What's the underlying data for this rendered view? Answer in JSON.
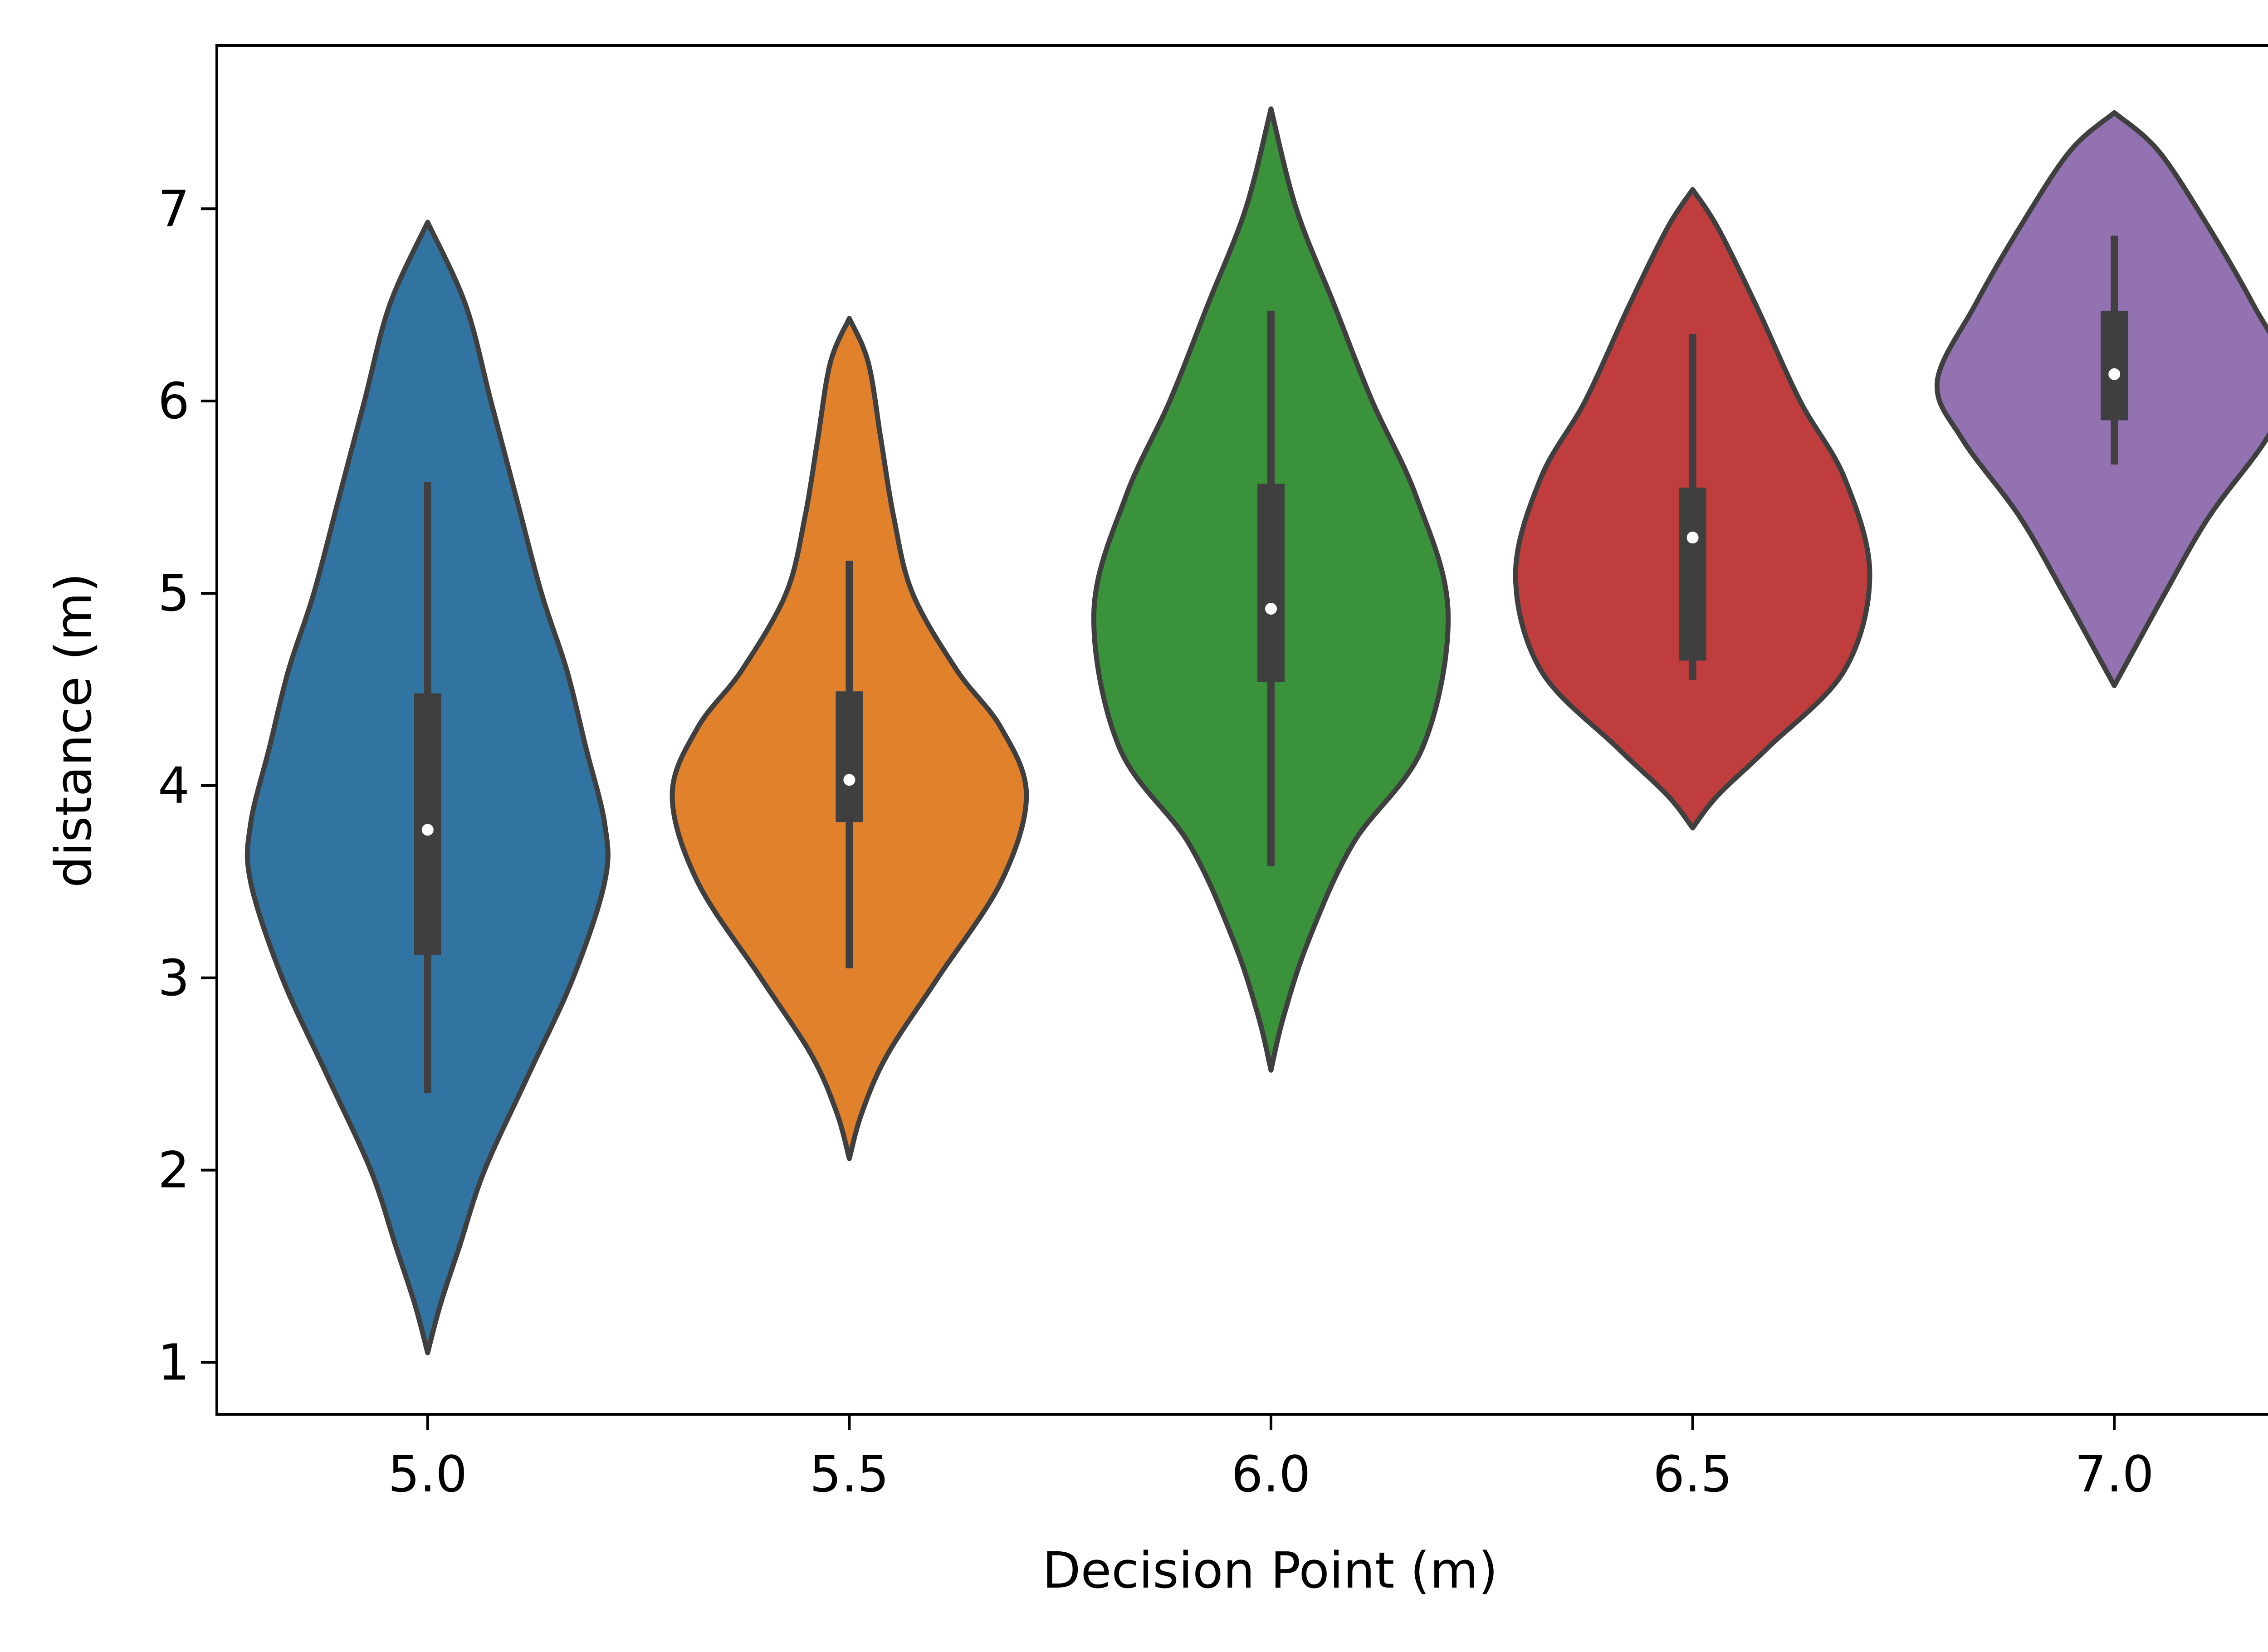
{
  "chart_data": {
    "type": "violin",
    "xlabel": "Decision Point (m)",
    "ylabel": "distance (m)",
    "ylim": [
      0.73,
      7.85
    ],
    "yticks": [
      1,
      2,
      3,
      4,
      5,
      6,
      7
    ],
    "categories": [
      "5.0",
      "5.5",
      "6.0",
      "6.5",
      "7.0"
    ],
    "grid": false,
    "violins": [
      {
        "category": "5.0",
        "color": "#3274a1",
        "min": 1.05,
        "max": 6.93,
        "whisker_low": 2.4,
        "q1": 3.12,
        "median": 3.77,
        "q3": 4.48,
        "whisker_high": 5.58,
        "profile": [
          [
            1.05,
            0.0
          ],
          [
            1.3,
            0.02
          ],
          [
            1.6,
            0.05
          ],
          [
            2.0,
            0.09
          ],
          [
            2.5,
            0.16
          ],
          [
            3.0,
            0.23
          ],
          [
            3.5,
            0.28
          ],
          [
            3.8,
            0.28
          ],
          [
            4.2,
            0.25
          ],
          [
            4.6,
            0.22
          ],
          [
            5.0,
            0.18
          ],
          [
            5.5,
            0.14
          ],
          [
            6.0,
            0.1
          ],
          [
            6.5,
            0.06
          ],
          [
            6.93,
            0.0
          ]
        ]
      },
      {
        "category": "5.5",
        "color": "#e1812c",
        "min": 2.06,
        "max": 6.43,
        "whisker_low": 3.05,
        "q1": 3.81,
        "median": 4.03,
        "q3": 4.49,
        "whisker_high": 5.17,
        "profile": [
          [
            2.06,
            0.0
          ],
          [
            2.3,
            0.02
          ],
          [
            2.6,
            0.06
          ],
          [
            3.0,
            0.14
          ],
          [
            3.5,
            0.24
          ],
          [
            3.95,
            0.28
          ],
          [
            4.3,
            0.24
          ],
          [
            4.6,
            0.17
          ],
          [
            5.0,
            0.1
          ],
          [
            5.4,
            0.07
          ],
          [
            5.8,
            0.05
          ],
          [
            6.2,
            0.03
          ],
          [
            6.43,
            0.0
          ]
        ]
      },
      {
        "category": "6.0",
        "color": "#3a923a",
        "min": 2.52,
        "max": 7.52,
        "whisker_low": 3.58,
        "q1": 4.54,
        "median": 4.92,
        "q3": 5.57,
        "whisker_high": 6.47,
        "profile": [
          [
            2.52,
            0.0
          ],
          [
            2.8,
            0.02
          ],
          [
            3.2,
            0.06
          ],
          [
            3.7,
            0.13
          ],
          [
            4.2,
            0.24
          ],
          [
            4.9,
            0.28
          ],
          [
            5.5,
            0.23
          ],
          [
            6.0,
            0.16
          ],
          [
            6.5,
            0.1
          ],
          [
            7.0,
            0.04
          ],
          [
            7.52,
            0.0
          ]
        ]
      },
      {
        "category": "6.5",
        "color": "#c03d3e",
        "min": 3.78,
        "max": 7.1,
        "whisker_low": 4.55,
        "q1": 4.65,
        "median": 5.29,
        "q3": 5.55,
        "whisker_high": 6.35,
        "profile": [
          [
            3.78,
            0.0
          ],
          [
            3.95,
            0.04
          ],
          [
            4.2,
            0.12
          ],
          [
            4.6,
            0.24
          ],
          [
            5.1,
            0.28
          ],
          [
            5.6,
            0.24
          ],
          [
            6.0,
            0.17
          ],
          [
            6.5,
            0.1
          ],
          [
            6.9,
            0.04
          ],
          [
            7.1,
            0.0
          ]
        ]
      },
      {
        "category": "7.0",
        "color": "#9372b2",
        "min": 4.52,
        "max": 7.5,
        "whisker_low": 5.67,
        "q1": 5.9,
        "median": 6.14,
        "q3": 6.47,
        "whisker_high": 6.86,
        "profile": [
          [
            4.52,
            0.0
          ],
          [
            4.7,
            0.03
          ],
          [
            5.0,
            0.08
          ],
          [
            5.4,
            0.15
          ],
          [
            5.8,
            0.24
          ],
          [
            6.1,
            0.28
          ],
          [
            6.5,
            0.22
          ],
          [
            6.9,
            0.15
          ],
          [
            7.3,
            0.07
          ],
          [
            7.5,
            0.0
          ]
        ]
      }
    ]
  }
}
